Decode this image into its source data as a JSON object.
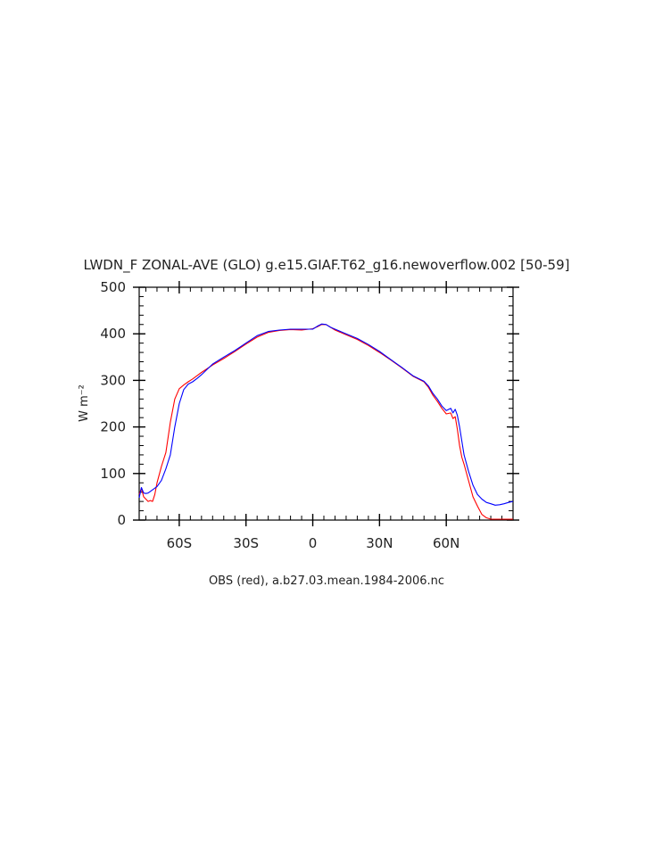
{
  "chart_data": {
    "type": "line",
    "title": "LWDN_F ZONAL-AVE (GLO) g.e15.GIAF.T62_g16.newoverflow.002 [50-59]",
    "subtitle": "OBS (red), a.b27.03.mean.1984-2006.nc",
    "xlabel": "",
    "ylabel": "W m⁻²",
    "xlim": [
      -78,
      90
    ],
    "ylim": [
      0,
      500
    ],
    "xticks": [
      {
        "value": -60,
        "label": "60S"
      },
      {
        "value": -30,
        "label": "30S"
      },
      {
        "value": 0,
        "label": "0"
      },
      {
        "value": 30,
        "label": "30N"
      },
      {
        "value": 60,
        "label": "60N"
      }
    ],
    "yticks": [
      {
        "value": 0,
        "label": "0"
      },
      {
        "value": 100,
        "label": "100"
      },
      {
        "value": 200,
        "label": "200"
      },
      {
        "value": 300,
        "label": "300"
      },
      {
        "value": 400,
        "label": "400"
      },
      {
        "value": 500,
        "label": "500"
      }
    ],
    "grid": false,
    "series": [
      {
        "color": "#ff0000",
        "x": [
          -78,
          -77,
          -76,
          -75,
          -74,
          -73,
          -72,
          -71,
          -70,
          -68,
          -66,
          -64,
          -62,
          -60,
          -58,
          -56,
          -54,
          -52,
          -50,
          -45,
          -40,
          -35,
          -30,
          -25,
          -20,
          -15,
          -10,
          -5,
          0,
          2,
          4,
          6,
          8,
          10,
          15,
          20,
          25,
          30,
          35,
          40,
          45,
          50,
          52,
          54,
          56,
          58,
          60,
          62,
          63,
          64,
          65,
          66,
          67,
          68,
          70,
          72,
          74,
          76,
          78,
          80,
          81,
          82,
          84,
          86,
          88,
          90
        ],
        "y": [
          55,
          68,
          50,
          45,
          40,
          42,
          40,
          55,
          80,
          115,
          145,
          210,
          260,
          282,
          290,
          297,
          303,
          310,
          317,
          333,
          347,
          362,
          378,
          393,
          403,
          407,
          409,
          408,
          411,
          415,
          420,
          420,
          414,
          408,
          398,
          388,
          375,
          360,
          344,
          327,
          309,
          297,
          285,
          268,
          255,
          240,
          228,
          230,
          218,
          222,
          195,
          160,
          135,
          120,
          85,
          50,
          30,
          12,
          5,
          2,
          2,
          2,
          2,
          2,
          2,
          2
        ]
      },
      {
        "color": "#0000ff",
        "x": [
          -78,
          -77,
          -76,
          -75,
          -74,
          -72,
          -70,
          -68,
          -66,
          -64,
          -62,
          -60,
          -58,
          -56,
          -54,
          -52,
          -50,
          -45,
          -40,
          -35,
          -30,
          -25,
          -20,
          -15,
          -10,
          -5,
          0,
          2,
          4,
          6,
          8,
          10,
          15,
          20,
          25,
          30,
          35,
          40,
          45,
          50,
          52,
          54,
          56,
          58,
          60,
          62,
          63,
          64,
          65,
          66,
          67,
          68,
          70,
          72,
          74,
          76,
          78,
          80,
          82,
          84,
          86,
          88,
          90
        ],
        "y": [
          48,
          70,
          58,
          57,
          58,
          65,
          72,
          85,
          110,
          140,
          200,
          250,
          280,
          292,
          297,
          304,
          312,
          335,
          350,
          364,
          380,
          396,
          405,
          408,
          410,
          410,
          410,
          416,
          421,
          420,
          414,
          410,
          400,
          390,
          377,
          362,
          345,
          328,
          310,
          298,
          288,
          272,
          260,
          245,
          235,
          240,
          230,
          238,
          225,
          200,
          170,
          140,
          105,
          75,
          55,
          45,
          38,
          35,
          32,
          33,
          35,
          38,
          40
        ]
      }
    ]
  }
}
